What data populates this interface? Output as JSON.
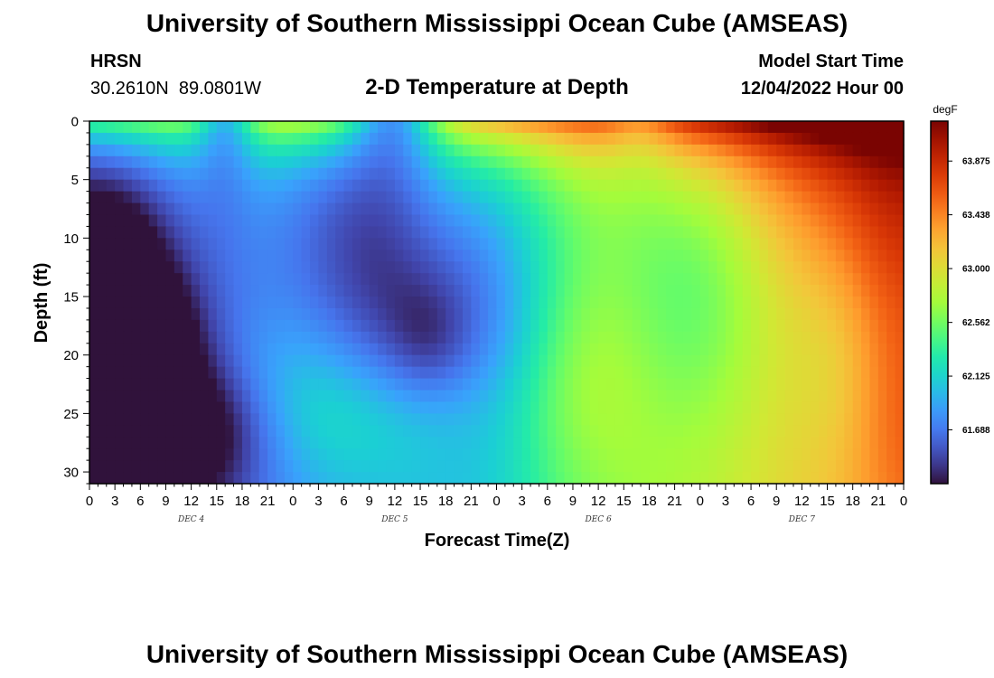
{
  "header": {
    "title": "University of Southern Mississippi Ocean Cube (AMSEAS)",
    "station": "HRSN",
    "coordinates": "30.2610N  89.0801W",
    "subtitle": "2-D Temperature at Depth",
    "model_start_label": "Model Start Time",
    "model_start_value": "12/04/2022 Hour 00"
  },
  "footer": {
    "title": "University of Southern Mississippi Ocean Cube (AMSEAS)"
  },
  "chart_data": {
    "type": "heatmap",
    "title": "2-D Temperature at Depth",
    "xlabel": "Forecast Time(Z)",
    "ylabel": "Depth (ft)",
    "x_range_hours": [
      0,
      96
    ],
    "y_range_ft": [
      0,
      31
    ],
    "x_tick_labels": [
      "0",
      "3",
      "6",
      "9",
      "12",
      "15",
      "18",
      "21",
      "0",
      "3",
      "6",
      "9",
      "12",
      "15",
      "18",
      "21",
      "0",
      "3",
      "6",
      "9",
      "12",
      "15",
      "18",
      "21",
      "0",
      "3",
      "6",
      "9",
      "12",
      "15",
      "18",
      "21",
      "0"
    ],
    "y_ticks": [
      0,
      5,
      10,
      15,
      20,
      25,
      30
    ],
    "day_labels": [
      "DEC 4",
      "DEC 5",
      "DEC 6",
      "DEC 7"
    ],
    "colorbar": {
      "unit": "degF",
      "ticks": [
        "61.688",
        "62.125",
        "62.562",
        "63.000",
        "63.438",
        "63.875"
      ],
      "min": 61.25,
      "max": 64.2
    },
    "colors": {
      "scale": [
        "#30123b",
        "#4145ab",
        "#4675ed",
        "#39a2fc",
        "#1bcfd4",
        "#24eca6",
        "#61fc6c",
        "#a4fc3b",
        "#d1e834",
        "#f3c63a",
        "#fe9b2d",
        "#f36315",
        "#d93806",
        "#b11901",
        "#7a0402"
      ]
    },
    "description_series": [
      {
        "name": "anomaly_features_hours_depth_note",
        "values": []
      }
    ]
  }
}
